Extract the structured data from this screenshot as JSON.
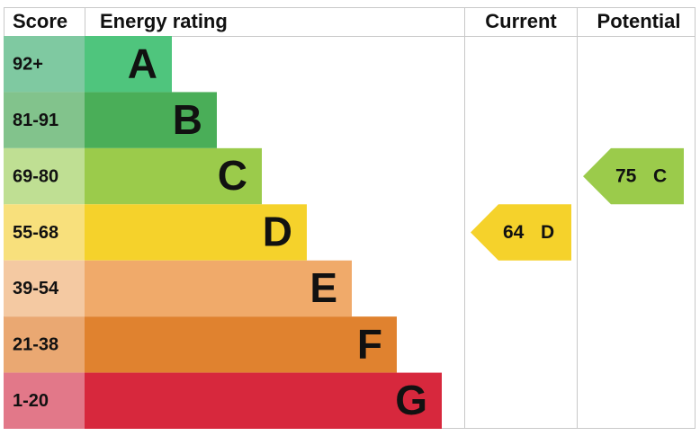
{
  "header": {
    "score": "Score",
    "rating": "Energy rating",
    "current": "Current",
    "potential": "Potential"
  },
  "bands": [
    {
      "score": "92+",
      "letter": "A",
      "color": "#4fc57d",
      "score_color": "#7fc9a1"
    },
    {
      "score": "81-91",
      "letter": "B",
      "color": "#4aae58",
      "score_color": "#82c38c"
    },
    {
      "score": "69-80",
      "letter": "C",
      "color": "#9bcb4b",
      "score_color": "#bfdf93"
    },
    {
      "score": "55-68",
      "letter": "D",
      "color": "#f5d22b",
      "score_color": "#f8e07c"
    },
    {
      "score": "39-54",
      "letter": "E",
      "color": "#f0aa6a",
      "score_color": "#f4c9a2"
    },
    {
      "score": "21-38",
      "letter": "F",
      "color": "#e0822f",
      "score_color": "#eaa872"
    },
    {
      "score": "1-20",
      "letter": "G",
      "color": "#d7283d",
      "score_color": "#e27889"
    }
  ],
  "current": {
    "value": 64,
    "letter": "D"
  },
  "potential": {
    "value": 75,
    "letter": "C"
  }
}
